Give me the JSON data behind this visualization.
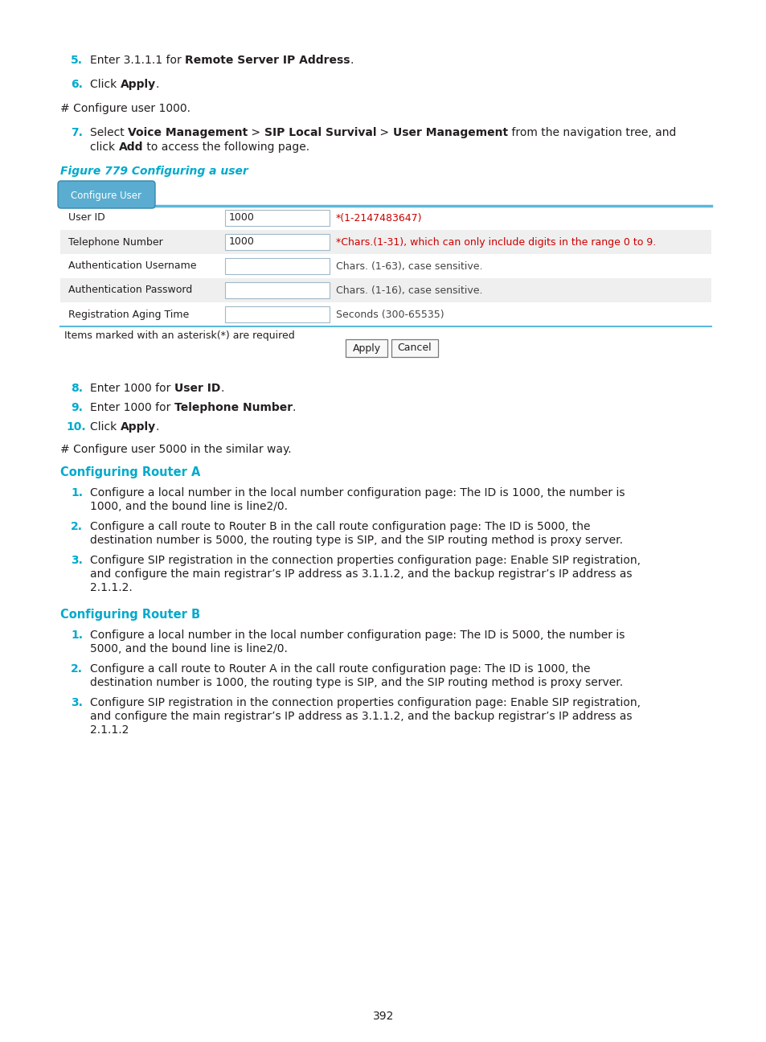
{
  "page_number": "392",
  "bg_color": "#ffffff",
  "cyan_color": "#00aacc",
  "text_color": "#231f20",
  "red_color": "#cc0000",
  "gray_row_color": "#efefef",
  "white_row_color": "#ffffff",
  "tab_bg_top": "#6ab4d8",
  "tab_bg_bot": "#4490b8",
  "tab_border": "#3388aa",
  "table_border_color": "#aaccdd",
  "table_rows": [
    {
      "label": "User ID",
      "value": "1000",
      "hint": "*(1-2147483647)",
      "hint_red": true,
      "shaded": false
    },
    {
      "label": "Telephone Number",
      "value": "1000",
      "hint": "*Chars.(1-31), which can only include digits in the range 0 to 9.",
      "hint_red": true,
      "shaded": true
    },
    {
      "label": "Authentication Username",
      "value": "",
      "hint": "Chars. (1-63), case sensitive.",
      "hint_red": false,
      "shaded": false
    },
    {
      "label": "Authentication Password",
      "value": "",
      "hint": "Chars. (1-16), case sensitive.",
      "hint_red": false,
      "shaded": true
    },
    {
      "label": "Registration Aging Time",
      "value": "",
      "hint": "Seconds (300-65535)",
      "hint_red": false,
      "shaded": false
    }
  ],
  "section_a_items": [
    [
      "Configure a local number in the local number configuration page: The ID is 1000, the number is",
      "1000, and the bound line is line2/0."
    ],
    [
      "Configure a call route to Router B in the call route configuration page: The ID is 5000, the",
      "destination number is 5000, the routing type is SIP, and the SIP routing method is proxy server."
    ],
    [
      "Configure SIP registration in the connection properties configuration page: Enable SIP registration,",
      "and configure the main registrar’s IP address as 3.1.1.2, and the backup registrar’s IP address as",
      "2.1.1.2."
    ]
  ],
  "section_b_items": [
    [
      "Configure a local number in the local number configuration page: The ID is 5000, the number is",
      "5000, and the bound line is line2/0."
    ],
    [
      "Configure a call route to Router A in the call route configuration page: The ID is 1000, the",
      "destination number is 1000, the routing type is SIP, and the SIP routing method is proxy server."
    ],
    [
      "Configure SIP registration in the connection properties configuration page: Enable SIP registration,",
      "and configure the main registrar’s IP address as 3.1.1.2, and the backup registrar’s IP address as",
      "2.1.1.2"
    ]
  ]
}
